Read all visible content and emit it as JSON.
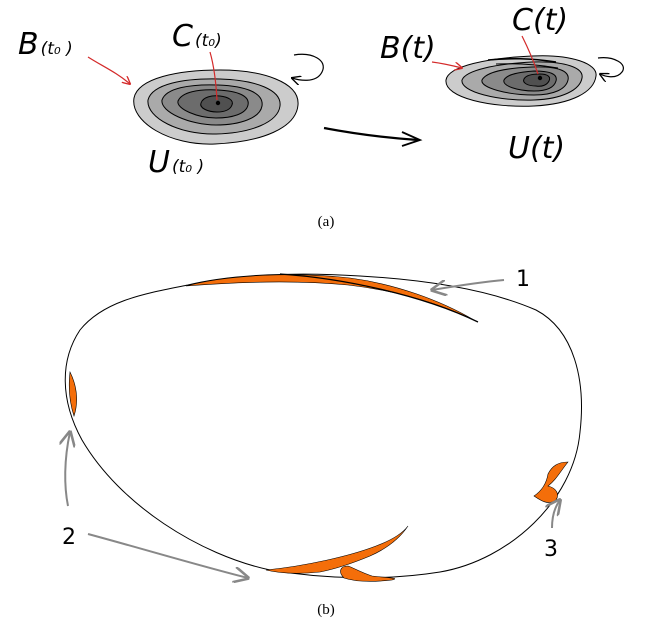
{
  "panel_a": {
    "left": {
      "c_main": "C",
      "c_sub": "(t₀)",
      "b_main": "B",
      "b_sub": "(t₀ )",
      "u_main": "U",
      "u_sub": "(t₀ )"
    },
    "right": {
      "c_label": "C(t)",
      "b_label": "B(t)",
      "u_label": "U(t)"
    },
    "caption": "(a)"
  },
  "panel_b": {
    "labels": [
      "1",
      "2",
      "3"
    ],
    "caption": "(b)"
  },
  "colors": {
    "arrow_red": "#d42a2a",
    "arrow_gray": "#888888",
    "fill_orange": "#f46e0a",
    "level_outer": "#cccccc",
    "level_2": "#aaaaaa",
    "level_3": "#8a8a8a",
    "level_4": "#6c6c6c",
    "level_inner": "#505050"
  }
}
